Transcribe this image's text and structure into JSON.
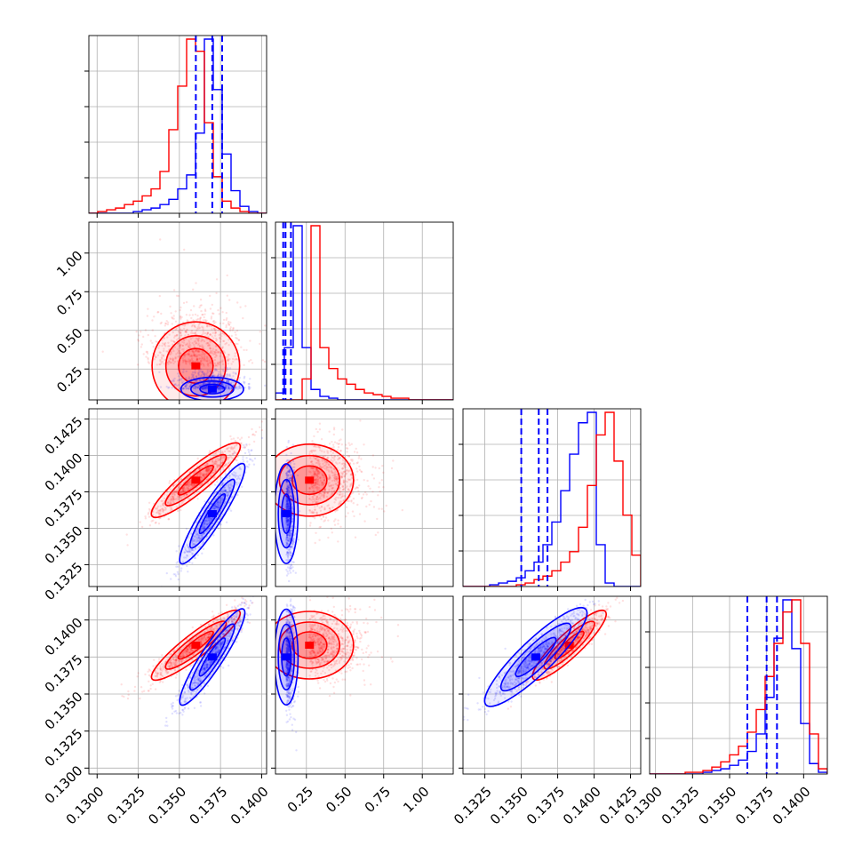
{
  "chart_data": {
    "type": "corner",
    "grid": true,
    "dimensions": 4,
    "series": [
      {
        "color": "#0000ff",
        "hist_counts": [
          [
            0,
            0,
            0,
            0,
            0,
            1,
            2,
            3,
            5,
            8,
            14,
            22,
            46,
            100,
            71,
            34,
            13,
            4,
            1,
            0
          ],
          [
            4,
            30,
            100,
            30,
            6,
            2,
            1,
            0,
            0,
            0,
            0,
            0,
            0,
            0,
            0,
            0,
            0,
            0,
            0,
            0
          ],
          [
            0,
            0,
            0,
            1,
            2,
            3,
            5,
            9,
            14,
            24,
            37,
            55,
            76,
            94,
            100,
            24,
            2,
            0,
            0,
            0
          ],
          [
            0,
            0,
            0,
            0,
            0,
            0,
            1,
            2,
            3,
            5,
            8,
            13,
            23,
            44,
            78,
            100,
            72,
            29,
            6,
            1
          ]
        ],
        "quantile_lines": [
          [
            0.136,
            0.137,
            0.1376
          ],
          [
            0.1,
            0.115,
            0.15
          ],
          [
            0.135,
            0.1362,
            0.1368
          ],
          [
            0.1362,
            0.1375,
            0.1382
          ]
        ],
        "means": [
          0.137,
          0.12,
          0.136,
          0.1375
        ],
        "density_scale": [
          0.001,
          0.04,
          0.0018,
          0.0017
        ]
      },
      {
        "color": "#ff0000",
        "hist_counts": [
          [
            0,
            1,
            2,
            3,
            5,
            7,
            10,
            14,
            24,
            48,
            73,
            100,
            93,
            52,
            21,
            7,
            3,
            1,
            0,
            0
          ],
          [
            0,
            0,
            0,
            12,
            100,
            30,
            18,
            12,
            9,
            6,
            4,
            3,
            2,
            1,
            1,
            0,
            0,
            0,
            0,
            0
          ],
          [
            0,
            0,
            0,
            0,
            0,
            0,
            1,
            2,
            4,
            6,
            9,
            14,
            20,
            34,
            58,
            87,
            100,
            72,
            41,
            18
          ],
          [
            0,
            0,
            0,
            0,
            1,
            1,
            2,
            4,
            7,
            11,
            16,
            24,
            37,
            56,
            75,
            93,
            100,
            75,
            23,
            3
          ]
        ],
        "quantile_lines": [],
        "means": [
          0.136,
          0.27,
          0.1383,
          0.1383
        ],
        "density_scale": [
          0.0014,
          0.15,
          0.0013,
          0.0012
        ]
      }
    ],
    "axes": [
      {
        "range": [
          0.1295,
          0.1403
        ],
        "ticks": [
          0.13,
          0.1325,
          0.135,
          0.1375,
          0.14
        ],
        "labels": [
          "0.1300",
          "0.1325",
          "0.1350",
          "0.1375",
          "0.1400"
        ]
      },
      {
        "range": [
          0.05,
          1.2
        ],
        "ticks": [
          0.25,
          0.5,
          0.75,
          1.0
        ],
        "labels": [
          "0.25",
          "0.50",
          "0.75",
          "1.00"
        ]
      },
      {
        "range": [
          0.131,
          0.1432
        ],
        "ticks": [
          0.1325,
          0.135,
          0.1375,
          0.14,
          0.1425
        ],
        "labels": [
          "0.1325",
          "0.1350",
          "0.1375",
          "0.1400",
          "0.1425"
        ]
      },
      {
        "range": [
          0.1296,
          0.1416
        ],
        "ticks": [
          0.13,
          0.1325,
          0.135,
          0.1375,
          0.14
        ],
        "labels": [
          "0.1300",
          "0.1325",
          "0.1350",
          "0.1375",
          "0.1400"
        ]
      }
    ],
    "panel_x_labels": [
      [
        "0.1300",
        "0.1325",
        "0.1350",
        "0.1375",
        "0.1400"
      ],
      [
        "0.25",
        "0.50",
        "0.75",
        "1.00"
      ],
      [
        "0.1325",
        "0.1350",
        "0.1375",
        "0.1400",
        "0.1425"
      ],
      [
        "0.1300",
        "0.1325",
        "0.1350",
        "0.1375",
        "0.1400"
      ]
    ],
    "panel_y_labels": [
      null,
      [
        "0.25",
        "0.50",
        "0.75",
        "1.00"
      ],
      [
        "0.1325",
        "0.1350",
        "0.1375",
        "0.1400",
        "0.1425"
      ],
      [
        "0.1300",
        "0.1325",
        "0.1350",
        "0.1375",
        "0.1400"
      ]
    ]
  }
}
